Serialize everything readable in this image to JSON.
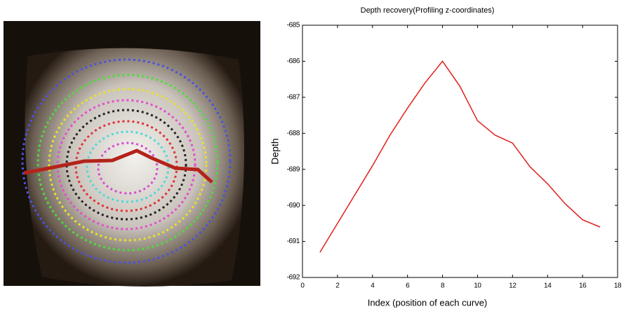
{
  "chart_data": {
    "type": "line",
    "title": "Depth recovery(Profiling z-coordinates)",
    "x_label": "Index (position of each curve)",
    "y_label": "Depth",
    "x": [
      1,
      2,
      3,
      4,
      5,
      6,
      7,
      8,
      9,
      10,
      11,
      12,
      13,
      14,
      15,
      16,
      17
    ],
    "series": [
      {
        "color": "#e0201b",
        "values": [
          -691.3,
          -690.5,
          -689.7,
          -688.9,
          -688.05,
          -687.3,
          -686.6,
          -686.0,
          -686.7,
          -687.65,
          -688.05,
          -688.27,
          -688.93,
          -689.4,
          -689.95,
          -690.4,
          -690.6
        ]
      }
    ],
    "xlim": [
      0,
      18
    ],
    "xticks": [
      0,
      2,
      4,
      6,
      8,
      10,
      12,
      14,
      16,
      18
    ],
    "ylim": [
      -692,
      -685
    ],
    "yticks": [
      -692,
      -691,
      -690,
      -689,
      -688,
      -687,
      -686,
      -685
    ]
  }
}
